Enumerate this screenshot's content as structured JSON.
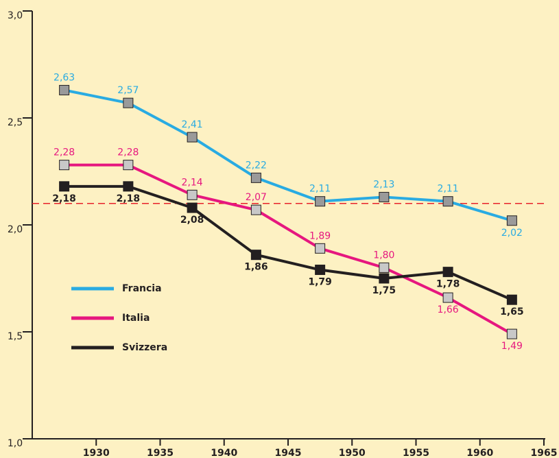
{
  "chart_data": {
    "type": "line",
    "x": [
      1927.5,
      1932.5,
      1937.5,
      1942.5,
      1947.5,
      1952.5,
      1957.5,
      1962.5
    ],
    "series": [
      {
        "name": "Francia",
        "color": "#29abe2",
        "marker_color": "#9a9a9a",
        "values": [
          2.63,
          2.57,
          2.41,
          2.22,
          2.11,
          2.13,
          2.11,
          2.02
        ],
        "value_labels": [
          "2,63",
          "2,57",
          "2,41",
          "2,22",
          "2,11",
          "2,13",
          "2,11",
          "2,02"
        ]
      },
      {
        "name": "Italia",
        "color": "#e6177f",
        "marker_color": "#c8c8c8",
        "values": [
          2.28,
          2.28,
          2.14,
          2.07,
          1.89,
          1.8,
          1.66,
          1.49
        ],
        "value_labels": [
          "2,28",
          "2,28",
          "2,14",
          "2,07",
          "1,89",
          "1,80",
          "1,66",
          "1,49"
        ]
      },
      {
        "name": "Svizzera",
        "color": "#231f20",
        "marker_color": "#231f20",
        "values": [
          2.18,
          2.18,
          2.08,
          1.86,
          1.79,
          1.75,
          1.78,
          1.65
        ],
        "value_labels": [
          "2,18",
          "2,18",
          "2,08",
          "1,86",
          "1,79",
          "1,75",
          "1,78",
          "1,65"
        ]
      }
    ],
    "xlim": [
      1925,
      1965
    ],
    "xticks": [
      1930,
      1935,
      1940,
      1945,
      1950,
      1955,
      1960,
      1965
    ],
    "ylim": [
      1.0,
      3.0
    ],
    "yticks": [
      {
        "value": 1.0,
        "label": "1,0"
      },
      {
        "value": 1.5,
        "label": "1,5"
      },
      {
        "value": 2.0,
        "label": "2,0"
      },
      {
        "value": 2.5,
        "label": "2,5"
      },
      {
        "value": 3.0,
        "label": "3,0"
      }
    ],
    "reference_line": {
      "value": 2.1,
      "color": "#e8212a"
    },
    "grid": false
  }
}
